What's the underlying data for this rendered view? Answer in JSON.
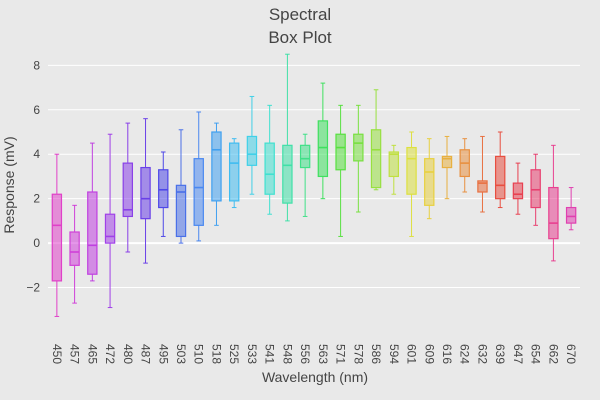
{
  "chart_data": {
    "type": "box",
    "title_lines": [
      "Spectral",
      "Box Plot"
    ],
    "xlabel": "Wavelength (nm)",
    "ylabel": "Response (mV)",
    "ylim": [
      -4,
      8.6
    ],
    "yticks": [
      -2,
      0,
      2,
      4,
      6,
      8
    ],
    "grid": true,
    "legend": "none",
    "categories": [
      "450",
      "457",
      "465",
      "472",
      "480",
      "487",
      "495",
      "503",
      "510",
      "518",
      "525",
      "533",
      "541",
      "548",
      "556",
      "563",
      "571",
      "578",
      "586",
      "594",
      "601",
      "609",
      "616",
      "624",
      "632",
      "639",
      "647",
      "654",
      "662",
      "670"
    ],
    "boxes": [
      {
        "x": "450",
        "min": -3.3,
        "q1": -1.7,
        "median": 0.8,
        "q3": 2.2,
        "max": 4.0,
        "color": "#e040c8"
      },
      {
        "x": "457",
        "min": -2.7,
        "q1": -1.0,
        "median": -0.4,
        "q3": 0.5,
        "max": 1.7,
        "color": "#d040d8"
      },
      {
        "x": "465",
        "min": -1.7,
        "q1": -1.4,
        "median": -0.1,
        "q3": 2.3,
        "max": 4.5,
        "color": "#c040e0"
      },
      {
        "x": "472",
        "min": -2.9,
        "q1": 0.0,
        "median": 0.3,
        "q3": 1.3,
        "max": 4.9,
        "color": "#a040e8"
      },
      {
        "x": "480",
        "min": -0.4,
        "q1": 1.2,
        "median": 1.5,
        "q3": 3.6,
        "max": 5.4,
        "color": "#8a40e8"
      },
      {
        "x": "487",
        "min": -0.9,
        "q1": 1.1,
        "median": 2.0,
        "q3": 3.4,
        "max": 5.6,
        "color": "#6a40e8"
      },
      {
        "x": "495",
        "min": 0.3,
        "q1": 1.6,
        "median": 2.4,
        "q3": 3.3,
        "max": 4.1,
        "color": "#4e48e8"
      },
      {
        "x": "503",
        "min": 0.0,
        "q1": 0.3,
        "median": 2.3,
        "q3": 2.6,
        "max": 5.1,
        "color": "#4a70e8"
      },
      {
        "x": "510",
        "min": 0.1,
        "q1": 0.8,
        "median": 2.5,
        "q3": 3.8,
        "max": 5.9,
        "color": "#4a88f0"
      },
      {
        "x": "518",
        "min": 0.8,
        "q1": 1.9,
        "median": 4.2,
        "q3": 5.0,
        "max": 5.4,
        "color": "#40a0f0"
      },
      {
        "x": "525",
        "min": 1.6,
        "q1": 1.9,
        "median": 3.6,
        "q3": 4.5,
        "max": 4.7,
        "color": "#40bcf0"
      },
      {
        "x": "533",
        "min": 2.2,
        "q1": 3.5,
        "median": 4.0,
        "q3": 4.8,
        "max": 6.6,
        "color": "#40d0e8"
      },
      {
        "x": "541",
        "min": 1.3,
        "q1": 2.2,
        "median": 3.1,
        "q3": 4.5,
        "max": 6.2,
        "color": "#40e0d0"
      },
      {
        "x": "548",
        "min": 1.0,
        "q1": 1.8,
        "median": 3.5,
        "q3": 4.4,
        "max": 8.5,
        "color": "#40e0a8"
      },
      {
        "x": "556",
        "min": 1.2,
        "q1": 3.4,
        "median": 3.8,
        "q3": 4.4,
        "max": 4.9,
        "color": "#40e088"
      },
      {
        "x": "563",
        "min": 2.0,
        "q1": 3.0,
        "median": 4.3,
        "q3": 5.5,
        "max": 7.2,
        "color": "#40e060"
      },
      {
        "x": "571",
        "min": 0.3,
        "q1": 3.3,
        "median": 4.3,
        "q3": 4.9,
        "max": 6.2,
        "color": "#58e040"
      },
      {
        "x": "578",
        "min": 1.4,
        "q1": 3.7,
        "median": 4.5,
        "q3": 4.9,
        "max": 6.2,
        "color": "#78e040"
      },
      {
        "x": "586",
        "min": 2.4,
        "q1": 2.5,
        "median": 4.2,
        "q3": 5.1,
        "max": 6.9,
        "color": "#98e040"
      },
      {
        "x": "594",
        "min": 2.2,
        "q1": 3.0,
        "median": 4.0,
        "q3": 4.1,
        "max": 4.4,
        "color": "#c0e040"
      },
      {
        "x": "601",
        "min": 0.3,
        "q1": 2.2,
        "median": 3.8,
        "q3": 4.3,
        "max": 5.0,
        "color": "#dde040"
      },
      {
        "x": "609",
        "min": 1.1,
        "q1": 1.7,
        "median": 3.2,
        "q3": 3.8,
        "max": 4.7,
        "color": "#e8d040"
      },
      {
        "x": "616",
        "min": 2.0,
        "q1": 3.4,
        "median": 3.8,
        "q3": 3.9,
        "max": 4.8,
        "color": "#e8b040"
      },
      {
        "x": "624",
        "min": 2.3,
        "q1": 3.0,
        "median": 3.6,
        "q3": 4.2,
        "max": 4.7,
        "color": "#e89040"
      },
      {
        "x": "632",
        "min": 1.4,
        "q1": 2.3,
        "median": 2.7,
        "q3": 2.8,
        "max": 4.8,
        "color": "#e87040"
      },
      {
        "x": "639",
        "min": 1.6,
        "q1": 2.0,
        "median": 2.6,
        "q3": 3.9,
        "max": 5.0,
        "color": "#e84e40"
      },
      {
        "x": "647",
        "min": 1.3,
        "q1": 2.0,
        "median": 2.2,
        "q3": 2.7,
        "max": 3.6,
        "color": "#e84050"
      },
      {
        "x": "654",
        "min": 0.8,
        "q1": 1.6,
        "median": 2.4,
        "q3": 3.3,
        "max": 4.0,
        "color": "#e84070"
      },
      {
        "x": "662",
        "min": -0.8,
        "q1": 0.2,
        "median": 0.9,
        "q3": 2.5,
        "max": 4.4,
        "color": "#e84090"
      },
      {
        "x": "670",
        "min": 0.6,
        "q1": 0.9,
        "median": 1.2,
        "q3": 1.6,
        "max": 2.5,
        "color": "#e040b0"
      }
    ]
  }
}
